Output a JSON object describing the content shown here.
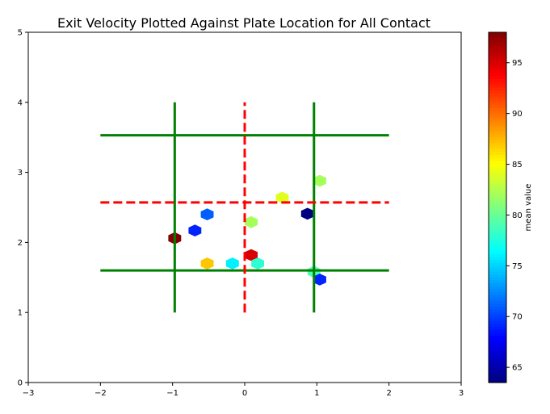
{
  "chart_data": {
    "type": "hexbin",
    "title": "Exit Velocity Plotted Against Plate Location for All Contact",
    "xlabel": "",
    "ylabel": "",
    "xlim": [
      -3,
      3
    ],
    "ylim": [
      0,
      5
    ],
    "xticks": [
      "−3",
      "−2",
      "−1",
      "0",
      "1",
      "2",
      "3"
    ],
    "yticks": [
      "0",
      "1",
      "2",
      "3",
      "4",
      "5"
    ],
    "grid": false,
    "colorbar": {
      "label": "mean value",
      "colormap": "jet",
      "min": 63.5,
      "max": 98,
      "ticks": [
        "65",
        "70",
        "75",
        "80",
        "85",
        "90",
        "95"
      ]
    },
    "points": [
      {
        "x": -0.97,
        "y": 2.06,
        "value": 98
      },
      {
        "x": -0.69,
        "y": 2.17,
        "value": 69
      },
      {
        "x": -0.52,
        "y": 2.4,
        "value": 71
      },
      {
        "x": -0.52,
        "y": 1.7,
        "value": 87
      },
      {
        "x": -0.17,
        "y": 1.7,
        "value": 76
      },
      {
        "x": 0.09,
        "y": 1.82,
        "value": 95
      },
      {
        "x": 0.18,
        "y": 1.7,
        "value": 78
      },
      {
        "x": 0.09,
        "y": 2.29,
        "value": 82
      },
      {
        "x": 0.52,
        "y": 2.64,
        "value": 84
      },
      {
        "x": 0.87,
        "y": 2.41,
        "value": 63.5
      },
      {
        "x": 0.96,
        "y": 1.58,
        "value": 79
      },
      {
        "x": 1.04,
        "y": 1.47,
        "value": 69
      },
      {
        "x": 1.04,
        "y": 2.88,
        "value": 82
      }
    ],
    "zone_lines": [
      {
        "style": "solid",
        "color": "#008000",
        "x": [
          -2,
          2
        ],
        "y": [
          3.53,
          3.53
        ]
      },
      {
        "style": "solid",
        "color": "#008000",
        "x": [
          -2,
          2
        ],
        "y": [
          1.6,
          1.6
        ]
      },
      {
        "style": "solid",
        "color": "#008000",
        "x": [
          -0.97,
          -0.97
        ],
        "y": [
          1,
          4
        ]
      },
      {
        "style": "solid",
        "color": "#008000",
        "x": [
          0.96,
          0.96
        ],
        "y": [
          1,
          4
        ]
      },
      {
        "style": "dashed",
        "color": "#ff0000",
        "x": [
          0,
          0
        ],
        "y": [
          1,
          4
        ]
      },
      {
        "style": "dashed",
        "color": "#ff0000",
        "x": [
          -2,
          2
        ],
        "y": [
          2.57,
          2.57
        ]
      }
    ]
  }
}
